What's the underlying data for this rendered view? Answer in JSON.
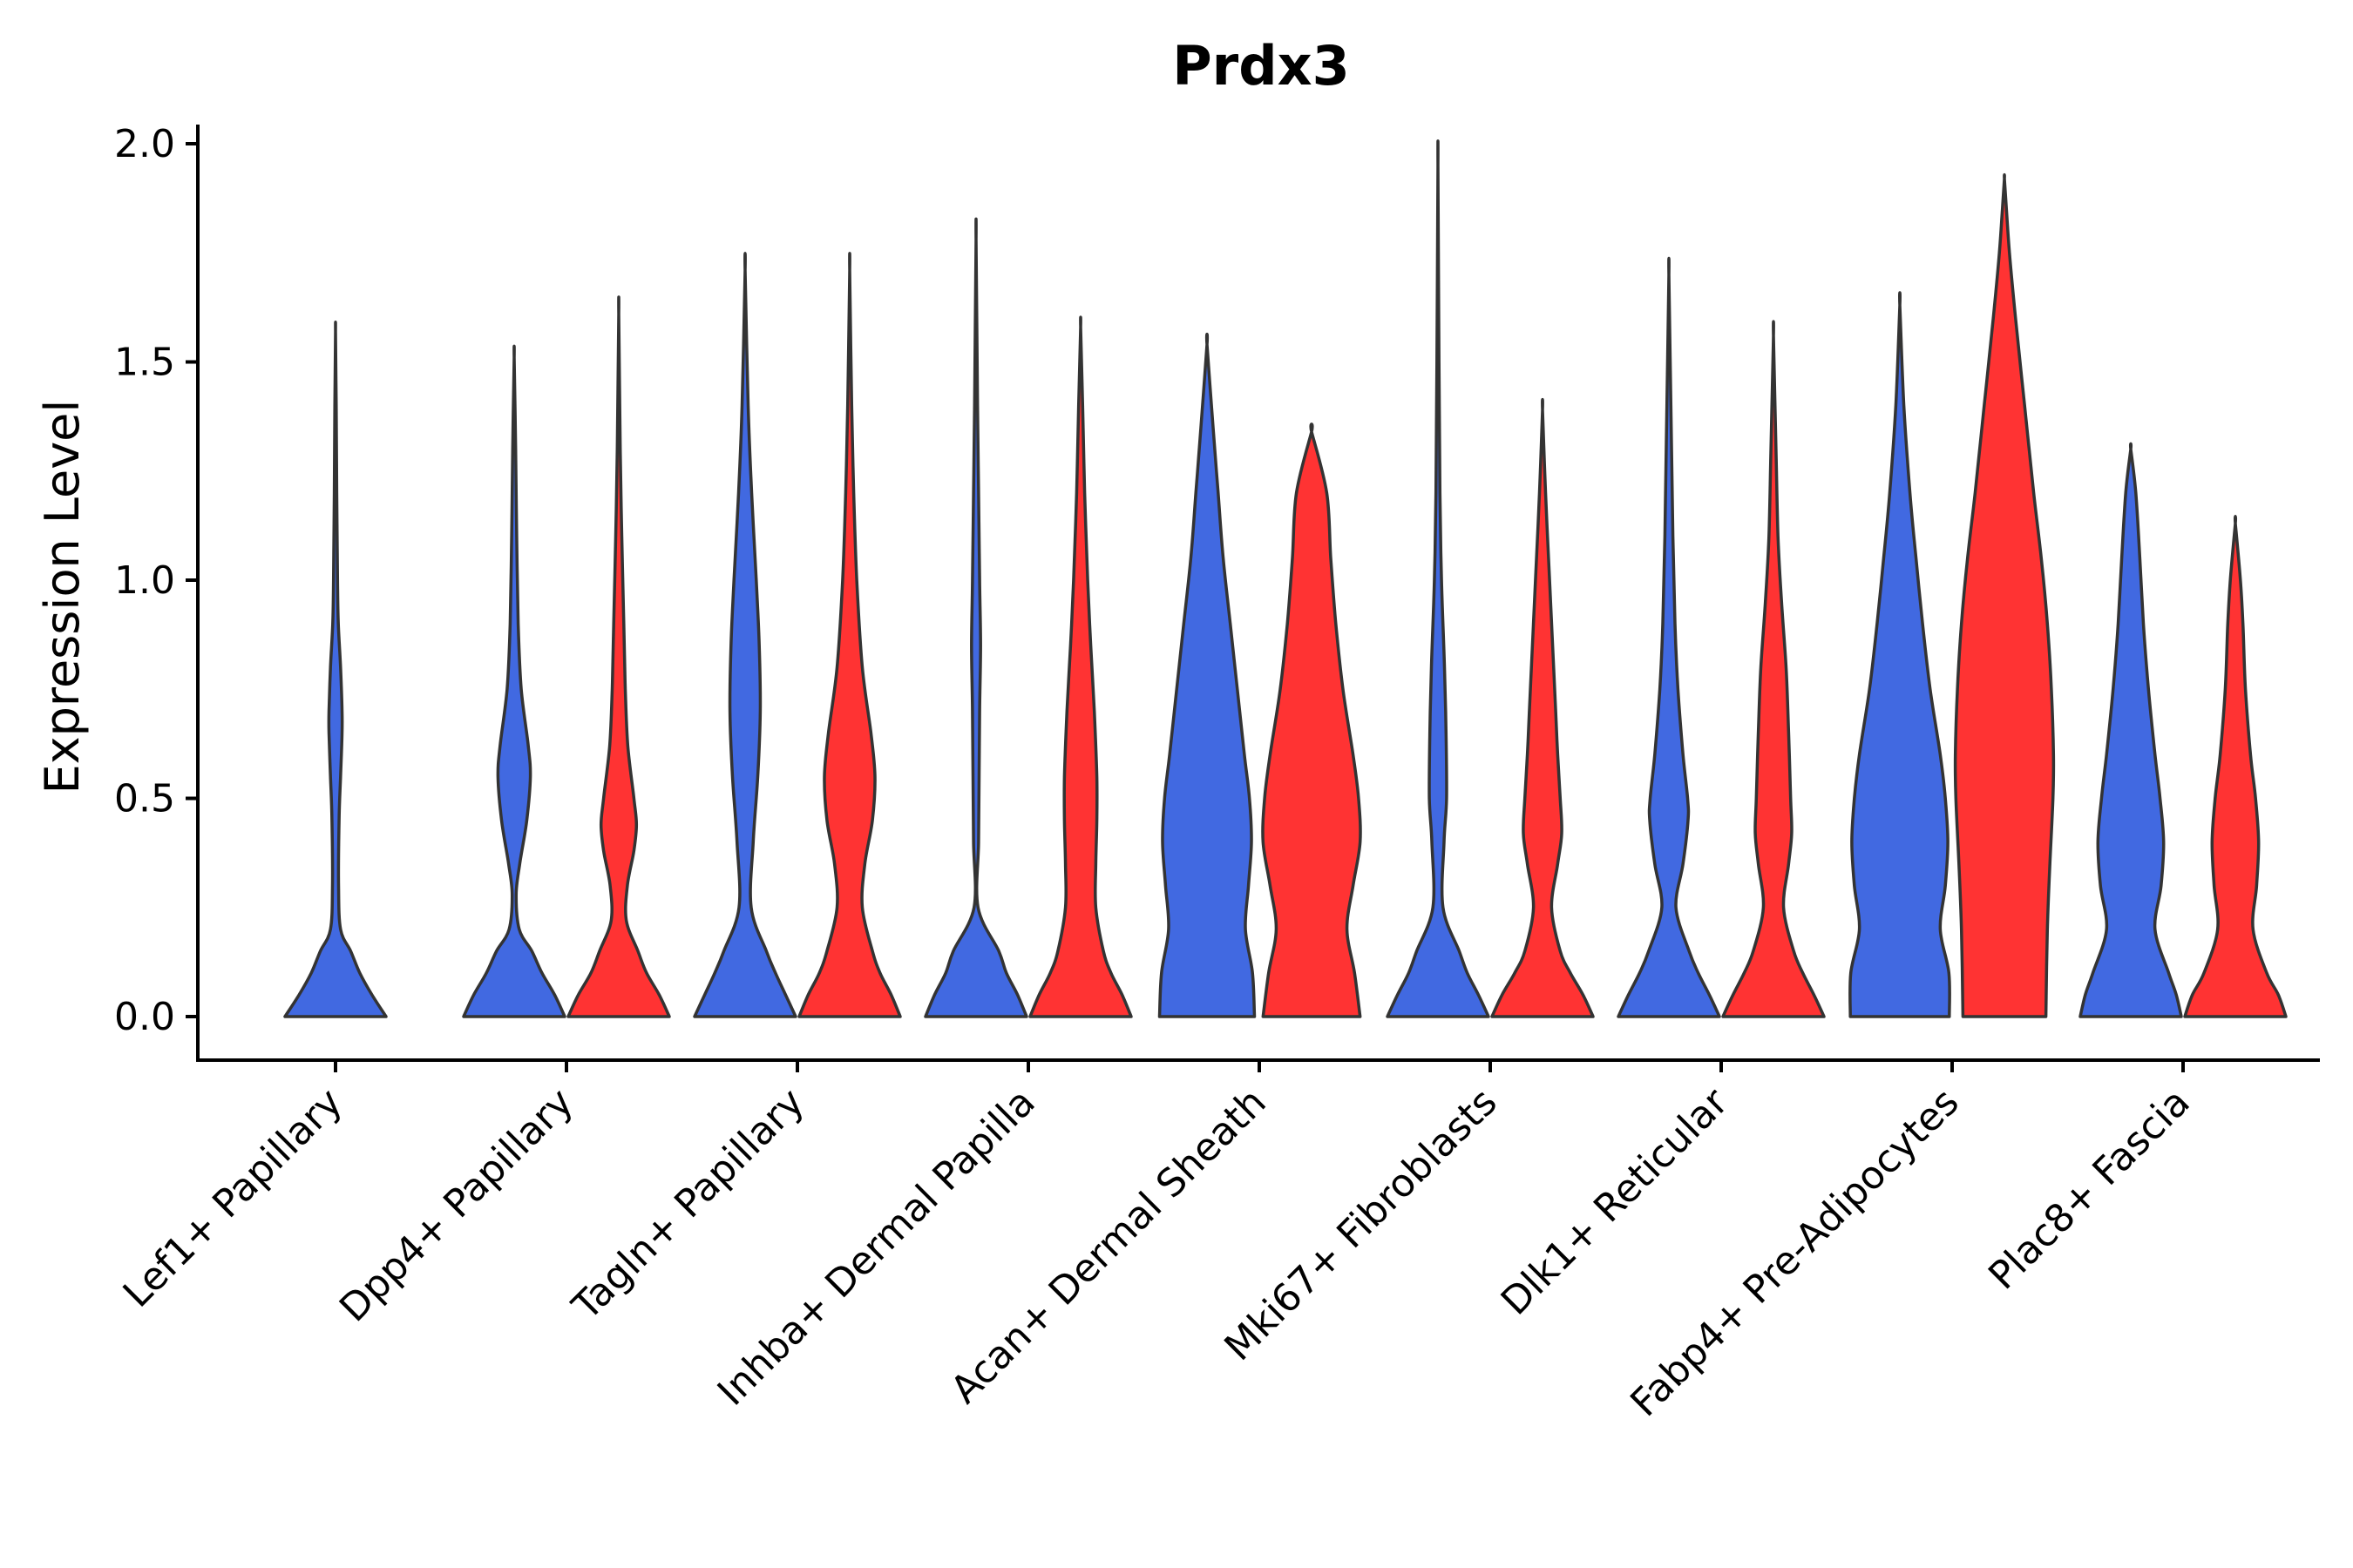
{
  "chart_data": {
    "type": "violin",
    "title": "Prdx3",
    "ylabel": "Expression Level",
    "xlabel": "",
    "ylim": [
      -0.1,
      2.05
    ],
    "yticks": [
      "0.0",
      "0.5",
      "1.0",
      "1.5",
      "2.0"
    ],
    "grid": false,
    "legend": "none",
    "series_colors": {
      "A": "#4169E1",
      "B": "#FF3333"
    },
    "categories": [
      "Lef1+ Papillary",
      "Dpp4+ Papillary",
      "Tagln+ Papillary",
      "Inhba+ Dermal Papilla",
      "Acan+ Dermal Sheath",
      "Mki67+ Fibroblasts",
      "Dlk1+ Reticular",
      "Fabp4+ Pre-Adipocytes",
      "Plac8+ Fascia"
    ],
    "violins": [
      {
        "category": "Lef1+ Papillary",
        "split": "A",
        "max": 1.57,
        "profile": [
          [
            0.0,
            1.0
          ],
          [
            0.05,
            0.72
          ],
          [
            0.1,
            0.48
          ],
          [
            0.15,
            0.3
          ],
          [
            0.2,
            0.1
          ],
          [
            0.3,
            0.06
          ],
          [
            0.45,
            0.07
          ],
          [
            0.55,
            0.1
          ],
          [
            0.65,
            0.13
          ],
          [
            0.7,
            0.13
          ],
          [
            0.8,
            0.1
          ],
          [
            0.9,
            0.055
          ],
          [
            1.0,
            0.04
          ],
          [
            1.2,
            0.025
          ],
          [
            1.4,
            0.013
          ],
          [
            1.57,
            0.0
          ]
        ]
      },
      {
        "category": "Dpp4+ Papillary",
        "split": "A",
        "max": 1.51,
        "profile": [
          [
            0.0,
            1.0
          ],
          [
            0.05,
            0.8
          ],
          [
            0.1,
            0.55
          ],
          [
            0.15,
            0.35
          ],
          [
            0.2,
            0.1
          ],
          [
            0.28,
            0.04
          ],
          [
            0.35,
            0.11
          ],
          [
            0.45,
            0.25
          ],
          [
            0.55,
            0.32
          ],
          [
            0.62,
            0.28
          ],
          [
            0.75,
            0.14
          ],
          [
            0.9,
            0.08
          ],
          [
            1.1,
            0.05
          ],
          [
            1.3,
            0.03
          ],
          [
            1.51,
            0.0
          ]
        ]
      },
      {
        "category": "Dpp4+ Papillary",
        "split": "B",
        "max": 1.61,
        "profile": [
          [
            0.0,
            1.0
          ],
          [
            0.05,
            0.8
          ],
          [
            0.1,
            0.55
          ],
          [
            0.15,
            0.38
          ],
          [
            0.22,
            0.15
          ],
          [
            0.3,
            0.17
          ],
          [
            0.38,
            0.3
          ],
          [
            0.44,
            0.35
          ],
          [
            0.5,
            0.3
          ],
          [
            0.62,
            0.18
          ],
          [
            0.75,
            0.13
          ],
          [
            0.9,
            0.1
          ],
          [
            1.1,
            0.06
          ],
          [
            1.3,
            0.03
          ],
          [
            1.61,
            0.0
          ]
        ]
      },
      {
        "category": "Tagln+ Papillary",
        "split": "A",
        "max": 1.71,
        "profile": [
          [
            0.0,
            1.0
          ],
          [
            0.05,
            0.8
          ],
          [
            0.1,
            0.6
          ],
          [
            0.15,
            0.42
          ],
          [
            0.25,
            0.12
          ],
          [
            0.4,
            0.16
          ],
          [
            0.55,
            0.25
          ],
          [
            0.7,
            0.3
          ],
          [
            0.85,
            0.28
          ],
          [
            1.0,
            0.22
          ],
          [
            1.2,
            0.13
          ],
          [
            1.4,
            0.06
          ],
          [
            1.71,
            0.0
          ]
        ]
      },
      {
        "category": "Tagln+ Papillary",
        "split": "B",
        "max": 1.71,
        "profile": [
          [
            0.0,
            1.0
          ],
          [
            0.05,
            0.82
          ],
          [
            0.1,
            0.6
          ],
          [
            0.15,
            0.45
          ],
          [
            0.25,
            0.25
          ],
          [
            0.35,
            0.3
          ],
          [
            0.45,
            0.45
          ],
          [
            0.55,
            0.5
          ],
          [
            0.65,
            0.42
          ],
          [
            0.8,
            0.25
          ],
          [
            1.0,
            0.14
          ],
          [
            1.2,
            0.08
          ],
          [
            1.4,
            0.04
          ],
          [
            1.71,
            0.0
          ]
        ]
      },
      {
        "category": "Inhba+ Dermal Papilla",
        "split": "A",
        "max": 1.78,
        "profile": [
          [
            0.0,
            1.0
          ],
          [
            0.05,
            0.82
          ],
          [
            0.1,
            0.6
          ],
          [
            0.15,
            0.45
          ],
          [
            0.25,
            0.04
          ],
          [
            0.4,
            0.05
          ],
          [
            0.55,
            0.06
          ],
          [
            0.7,
            0.07
          ],
          [
            0.85,
            0.09
          ],
          [
            1.0,
            0.07
          ],
          [
            1.2,
            0.05
          ],
          [
            1.4,
            0.03
          ],
          [
            1.78,
            0.0
          ]
        ]
      },
      {
        "category": "Inhba+ Dermal Papilla",
        "split": "B",
        "max": 1.58,
        "profile": [
          [
            0.0,
            1.0
          ],
          [
            0.05,
            0.82
          ],
          [
            0.1,
            0.6
          ],
          [
            0.15,
            0.45
          ],
          [
            0.25,
            0.3
          ],
          [
            0.35,
            0.3
          ],
          [
            0.45,
            0.32
          ],
          [
            0.55,
            0.32
          ],
          [
            0.7,
            0.27
          ],
          [
            0.85,
            0.2
          ],
          [
            1.0,
            0.14
          ],
          [
            1.2,
            0.08
          ],
          [
            1.4,
            0.04
          ],
          [
            1.58,
            0.0
          ]
        ]
      },
      {
        "category": "Acan+ Dermal Sheath",
        "split": "A",
        "max": 1.54,
        "profile": [
          [
            0.0,
            0.94
          ],
          [
            0.1,
            0.9
          ],
          [
            0.2,
            0.76
          ],
          [
            0.3,
            0.82
          ],
          [
            0.4,
            0.88
          ],
          [
            0.5,
            0.84
          ],
          [
            0.6,
            0.74
          ],
          [
            0.75,
            0.6
          ],
          [
            0.9,
            0.46
          ],
          [
            1.05,
            0.32
          ],
          [
            1.2,
            0.22
          ],
          [
            1.35,
            0.12
          ],
          [
            1.54,
            0.0
          ]
        ]
      },
      {
        "category": "Acan+ Dermal Sheath",
        "split": "B",
        "max": 1.34,
        "profile": [
          [
            0.0,
            0.96
          ],
          [
            0.1,
            0.85
          ],
          [
            0.2,
            0.7
          ],
          [
            0.3,
            0.82
          ],
          [
            0.4,
            0.96
          ],
          [
            0.5,
            0.93
          ],
          [
            0.6,
            0.82
          ],
          [
            0.75,
            0.62
          ],
          [
            0.9,
            0.48
          ],
          [
            1.05,
            0.38
          ],
          [
            1.2,
            0.3
          ],
          [
            1.34,
            0.0
          ]
        ]
      },
      {
        "category": "Mki67+ Fibroblasts",
        "split": "A",
        "max": 1.95,
        "profile": [
          [
            0.0,
            1.0
          ],
          [
            0.05,
            0.8
          ],
          [
            0.1,
            0.58
          ],
          [
            0.15,
            0.42
          ],
          [
            0.25,
            0.1
          ],
          [
            0.4,
            0.12
          ],
          [
            0.5,
            0.17
          ],
          [
            0.65,
            0.16
          ],
          [
            0.8,
            0.13
          ],
          [
            1.0,
            0.07
          ],
          [
            1.2,
            0.04
          ],
          [
            1.5,
            0.02
          ],
          [
            1.95,
            0.0
          ]
        ]
      },
      {
        "category": "Mki67+ Fibroblasts",
        "split": "B",
        "max": 1.39,
        "profile": [
          [
            0.0,
            1.0
          ],
          [
            0.05,
            0.8
          ],
          [
            0.1,
            0.55
          ],
          [
            0.15,
            0.35
          ],
          [
            0.25,
            0.18
          ],
          [
            0.35,
            0.3
          ],
          [
            0.42,
            0.38
          ],
          [
            0.5,
            0.35
          ],
          [
            0.6,
            0.3
          ],
          [
            0.7,
            0.26
          ],
          [
            0.85,
            0.2
          ],
          [
            1.0,
            0.14
          ],
          [
            1.2,
            0.06
          ],
          [
            1.39,
            0.0
          ]
        ]
      },
      {
        "category": "Dlk1+ Reticular",
        "split": "A",
        "max": 1.7,
        "profile": [
          [
            0.0,
            1.0
          ],
          [
            0.05,
            0.8
          ],
          [
            0.1,
            0.58
          ],
          [
            0.15,
            0.4
          ],
          [
            0.25,
            0.14
          ],
          [
            0.35,
            0.28
          ],
          [
            0.45,
            0.38
          ],
          [
            0.5,
            0.37
          ],
          [
            0.6,
            0.28
          ],
          [
            0.75,
            0.18
          ],
          [
            0.9,
            0.12
          ],
          [
            1.1,
            0.08
          ],
          [
            1.4,
            0.04
          ],
          [
            1.7,
            0.0
          ]
        ]
      },
      {
        "category": "Dlk1+ Reticular",
        "split": "B",
        "max": 1.56,
        "profile": [
          [
            0.0,
            1.0
          ],
          [
            0.05,
            0.8
          ],
          [
            0.1,
            0.58
          ],
          [
            0.15,
            0.4
          ],
          [
            0.25,
            0.2
          ],
          [
            0.35,
            0.3
          ],
          [
            0.42,
            0.36
          ],
          [
            0.5,
            0.34
          ],
          [
            0.65,
            0.3
          ],
          [
            0.8,
            0.25
          ],
          [
            0.95,
            0.16
          ],
          [
            1.1,
            0.09
          ],
          [
            1.3,
            0.05
          ],
          [
            1.56,
            0.0
          ]
        ]
      },
      {
        "category": "Fabp4+ Pre-Adipocytes",
        "split": "A",
        "max": 1.63,
        "profile": [
          [
            0.0,
            0.98
          ],
          [
            0.1,
            0.97
          ],
          [
            0.2,
            0.8
          ],
          [
            0.3,
            0.9
          ],
          [
            0.4,
            0.95
          ],
          [
            0.5,
            0.9
          ],
          [
            0.6,
            0.8
          ],
          [
            0.75,
            0.6
          ],
          [
            0.9,
            0.45
          ],
          [
            1.05,
            0.32
          ],
          [
            1.2,
            0.2
          ],
          [
            1.4,
            0.08
          ],
          [
            1.63,
            0.0
          ]
        ]
      },
      {
        "category": "Fabp4+ Pre-Adipocytes",
        "split": "B",
        "max": 1.92,
        "profile": [
          [
            0.0,
            0.82
          ],
          [
            0.2,
            0.85
          ],
          [
            0.35,
            0.9
          ],
          [
            0.5,
            0.96
          ],
          [
            0.6,
            0.97
          ],
          [
            0.75,
            0.93
          ],
          [
            0.9,
            0.85
          ],
          [
            1.05,
            0.73
          ],
          [
            1.2,
            0.58
          ],
          [
            1.4,
            0.4
          ],
          [
            1.6,
            0.22
          ],
          [
            1.75,
            0.1
          ],
          [
            1.85,
            0.04
          ],
          [
            1.92,
            0.0
          ]
        ]
      },
      {
        "category": "Plac8+ Fascia",
        "split": "A",
        "max": 1.3,
        "profile": [
          [
            0.0,
            1.0
          ],
          [
            0.05,
            0.9
          ],
          [
            0.1,
            0.75
          ],
          [
            0.2,
            0.48
          ],
          [
            0.3,
            0.6
          ],
          [
            0.4,
            0.65
          ],
          [
            0.5,
            0.58
          ],
          [
            0.6,
            0.48
          ],
          [
            0.75,
            0.35
          ],
          [
            0.9,
            0.25
          ],
          [
            1.05,
            0.18
          ],
          [
            1.2,
            0.1
          ],
          [
            1.3,
            0.0
          ]
        ]
      },
      {
        "category": "Plac8+ Fascia",
        "split": "B",
        "max": 1.13,
        "profile": [
          [
            0.0,
            1.0
          ],
          [
            0.05,
            0.85
          ],
          [
            0.1,
            0.62
          ],
          [
            0.2,
            0.35
          ],
          [
            0.3,
            0.42
          ],
          [
            0.4,
            0.46
          ],
          [
            0.5,
            0.4
          ],
          [
            0.6,
            0.3
          ],
          [
            0.75,
            0.2
          ],
          [
            0.9,
            0.15
          ],
          [
            1.0,
            0.1
          ],
          [
            1.13,
            0.0
          ]
        ]
      }
    ]
  }
}
